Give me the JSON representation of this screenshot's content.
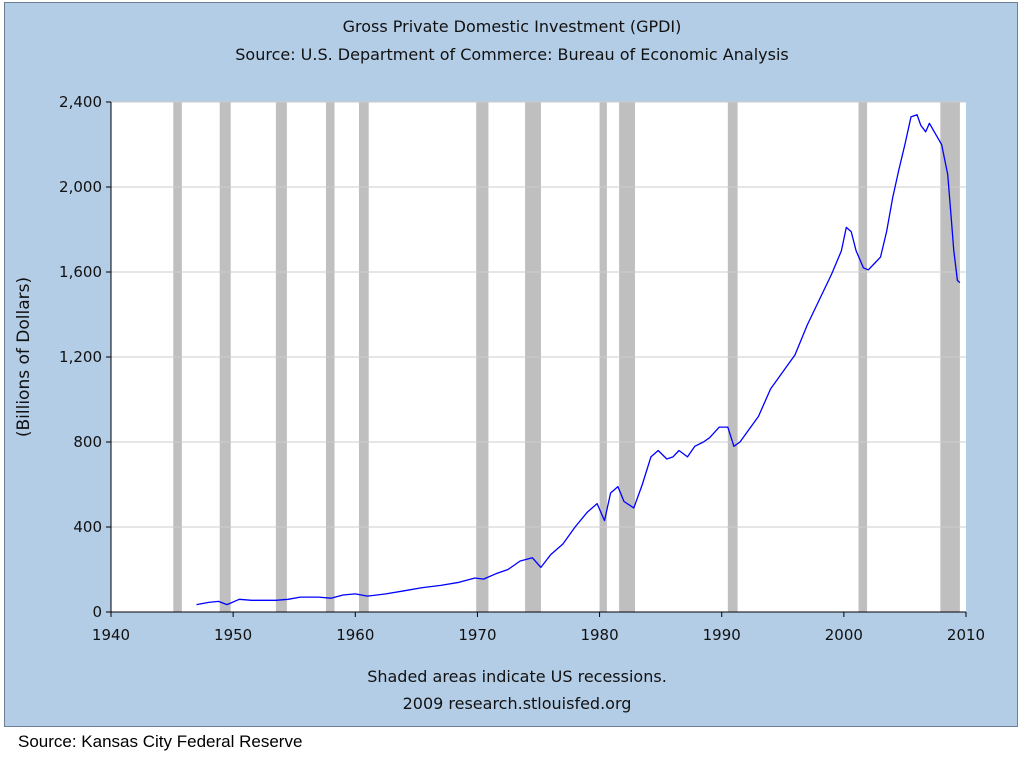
{
  "caption": "Source: Kansas City Federal Reserve",
  "chart_data": {
    "type": "line",
    "title": "Gross Private Domestic Investment (GPDI)",
    "subtitle": "Source: U.S. Department of Commerce: Bureau of Economic Analysis",
    "ylabel": "(Billions of Dollars)",
    "xlabel": "",
    "notes": [
      "Shaded areas indicate US recessions.",
      "2009 research.stlouisfed.org"
    ],
    "xlim": [
      1940,
      2010
    ],
    "ylim": [
      0,
      2400
    ],
    "x_ticks": [
      1940,
      1950,
      1960,
      1970,
      1980,
      1990,
      2000,
      2010
    ],
    "y_ticks": [
      0,
      400,
      800,
      1200,
      1600,
      2000,
      2400
    ],
    "y_tick_labels": [
      "0",
      "400",
      "800",
      "1,200",
      "1,600",
      "2,000",
      "2,400"
    ],
    "grid": "horizontal",
    "colors": {
      "line": "#0000ff",
      "recession": "#bfbfbf",
      "plot_bg": "#ffffff",
      "frame_bg": "#b4cde6"
    },
    "recessions": [
      [
        1945.1,
        1945.8
      ],
      [
        1948.9,
        1949.8
      ],
      [
        1953.5,
        1954.4
      ],
      [
        1957.6,
        1958.3
      ],
      [
        1960.3,
        1961.1
      ],
      [
        1969.9,
        1970.9
      ],
      [
        1973.9,
        1975.2
      ],
      [
        1980.0,
        1980.6
      ],
      [
        1981.6,
        1982.9
      ],
      [
        1990.5,
        1991.3
      ],
      [
        2001.2,
        2001.9
      ],
      [
        2007.9,
        2009.5
      ]
    ],
    "series": [
      {
        "x": [
          1947.0,
          1948.0,
          1948.8,
          1949.5,
          1950.5,
          1951.5,
          1952.5,
          1953.5,
          1954.5,
          1955.5,
          1957.0,
          1958.0,
          1959.0,
          1960.0,
          1961.0,
          1962.5,
          1964.0,
          1965.5,
          1967.0,
          1968.5,
          1969.8,
          1970.5,
          1971.5,
          1972.5,
          1973.5,
          1974.5,
          1975.2,
          1976.0,
          1977.0,
          1978.0,
          1979.0,
          1979.8,
          1980.4,
          1980.9,
          1981.5,
          1982.0,
          1982.8,
          1983.5,
          1984.2,
          1984.8,
          1985.5,
          1986.0,
          1986.5,
          1987.2,
          1987.8,
          1988.5,
          1989.0,
          1989.8,
          1990.5,
          1991.0,
          1991.5,
          1992.0,
          1993.0,
          1994.0,
          1995.0,
          1996.0,
          1997.0,
          1998.0,
          1999.0,
          1999.8,
          2000.2,
          2000.6,
          2001.0,
          2001.6,
          2002.0,
          2002.5,
          2003.0,
          2003.5,
          2004.0,
          2004.5,
          2005.0,
          2005.5,
          2006.0,
          2006.3,
          2006.7,
          2007.0,
          2007.5,
          2008.0,
          2008.5,
          2008.8,
          2009.0,
          2009.3,
          2009.5
        ],
        "values": [
          35,
          45,
          50,
          35,
          60,
          55,
          55,
          55,
          60,
          70,
          70,
          65,
          80,
          85,
          75,
          85,
          100,
          115,
          125,
          140,
          160,
          155,
          180,
          200,
          240,
          255,
          210,
          270,
          320,
          400,
          470,
          510,
          430,
          560,
          590,
          520,
          490,
          600,
          730,
          760,
          720,
          730,
          760,
          730,
          780,
          800,
          820,
          870,
          870,
          780,
          800,
          840,
          920,
          1050,
          1130,
          1210,
          1350,
          1470,
          1590,
          1700,
          1810,
          1790,
          1700,
          1620,
          1610,
          1640,
          1670,
          1790,
          1950,
          2080,
          2200,
          2330,
          2340,
          2290,
          2260,
          2300,
          2250,
          2200,
          2060,
          1850,
          1700,
          1560,
          1550
        ]
      }
    ]
  }
}
